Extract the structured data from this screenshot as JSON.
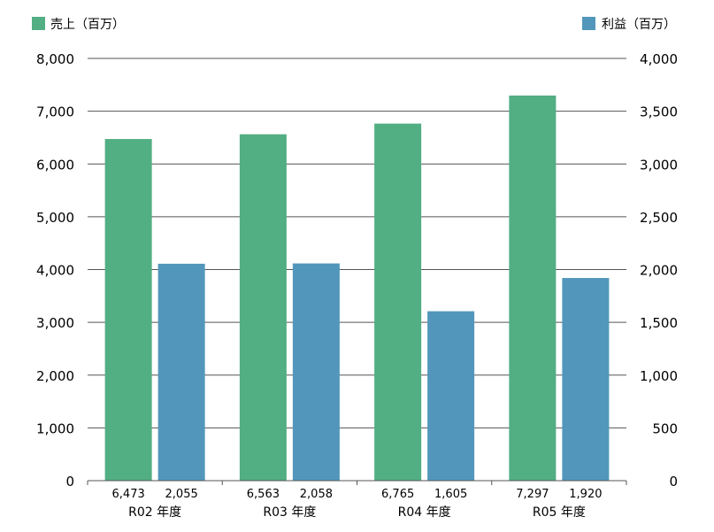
{
  "chart_data": {
    "type": "bar",
    "categories": [
      "R02 年度",
      "R03 年度",
      "R04 年度",
      "R05 年度"
    ],
    "series": [
      {
        "name": "売上（百万）",
        "axis": "left",
        "color": "#52ae83",
        "values": [
          6473,
          6563,
          6765,
          7297
        ],
        "labels": [
          "6,473",
          "6,563",
          "6,765",
          "7,297"
        ]
      },
      {
        "name": "利益（百万）",
        "axis": "right",
        "color": "#5297bb",
        "values": [
          2055,
          2058,
          1605,
          1920
        ],
        "labels": [
          "2,055",
          "2,058",
          "1,605",
          "1,920"
        ]
      }
    ],
    "y_left": {
      "range": [
        0,
        8000
      ],
      "ticks": [
        "0",
        "1,000",
        "2,000",
        "3,000",
        "4,000",
        "5,000",
        "6,000",
        "7,000",
        "8,000"
      ]
    },
    "y_right": {
      "range": [
        0,
        4000
      ],
      "ticks": [
        "0",
        "500",
        "1,000",
        "1,500",
        "2,000",
        "2,500",
        "3,000",
        "3,500",
        "4,000"
      ]
    },
    "grid": true,
    "legend": {
      "left": "売上（百万）",
      "right": "利益（百万）",
      "placement": "top"
    }
  }
}
